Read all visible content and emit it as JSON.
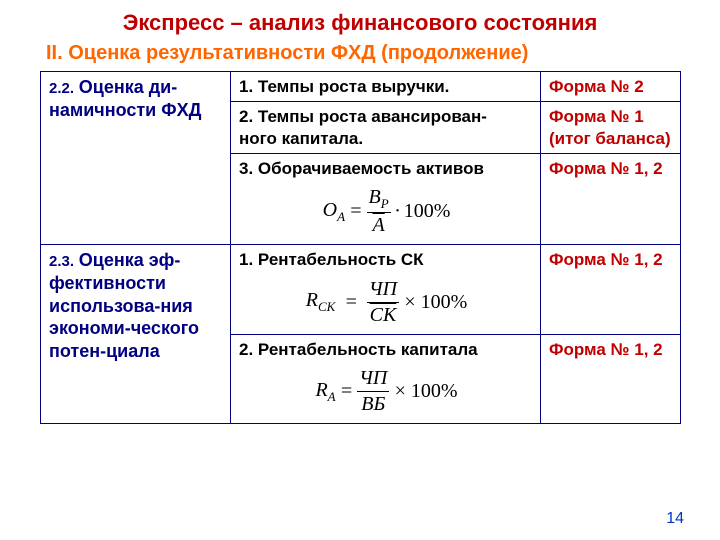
{
  "title": "Экспресс – анализ финансового состояния",
  "subtitle": "II. Оценка результативности ФХД (продолжение)",
  "page_number": "14",
  "colors": {
    "title_color": "#c00000",
    "subtitle_color": "#ff6600",
    "table_border": "#000080",
    "left_text": "#000080",
    "mid_text": "#000000",
    "right_text": "#c00000",
    "pagenum_color": "#0033cc",
    "background": "#ffffff"
  },
  "sections": [
    {
      "number": "2.2.",
      "title": "Оценка ди-намичности ФХД",
      "rows": [
        {
          "mid": "1. Темпы роста выручки.",
          "right": "Форма № 2",
          "formula": null
        },
        {
          "mid": "2. Темпы роста авансирован-\n    ного капитала.",
          "right": "Форма № 1 (итог баланса)",
          "formula": null
        },
        {
          "mid": "3. Оборачиваемость активов",
          "right": "Форма № 1, 2",
          "formula": {
            "left": "O",
            "left_sub": "A",
            "num": "B",
            "num_sub": "P",
            "num_bar": false,
            "den": "A",
            "den_bar": true,
            "op": "·",
            "tail": "100%"
          }
        }
      ]
    },
    {
      "number": "2.3.",
      "title": "Оценка эф-фективности использова-ния экономи-ческого потен-циала",
      "rows": [
        {
          "mid": "1. Рентабельность СК",
          "right": "Форма № 1, 2",
          "formula": {
            "left": "R",
            "left_sub": "CK",
            "num": "ЧП",
            "num_sub": "",
            "num_bar": false,
            "den": "СК",
            "den_bar": true,
            "op": "×",
            "tail": "100%"
          }
        },
        {
          "mid": "2. Рентабельность капитала",
          "right": "Форма № 1, 2",
          "formula": {
            "left": "R",
            "left_sub": "A",
            "num": "ЧП",
            "num_sub": "",
            "num_bar": false,
            "den": "ВБ",
            "den_bar": false,
            "op": "×",
            "tail": "100%"
          }
        }
      ]
    }
  ]
}
